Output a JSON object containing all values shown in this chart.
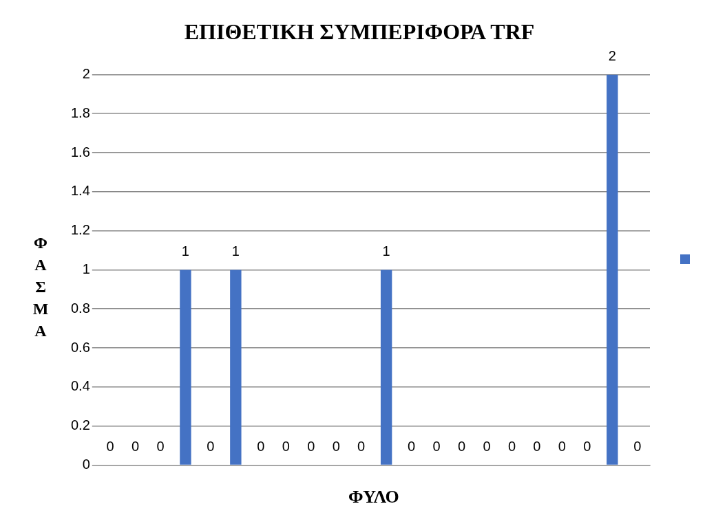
{
  "chart_data": {
    "type": "bar",
    "title": "ΕΠΙΘΕΤΙΚΗ ΣΥΜΠΕΡΙΦΟΡΑ TRF",
    "xlabel": "ΦΥΛΟ",
    "ylabel": "ΦΑΣΜΑ",
    "categories": [
      null,
      null,
      null,
      null,
      null,
      null,
      null,
      null,
      null,
      null,
      null,
      null,
      null,
      null,
      null,
      null,
      null,
      null,
      null,
      null,
      null,
      null
    ],
    "series": [
      {
        "color": "#4472c4",
        "values": [
          0,
          0,
          0,
          1,
          0,
          1,
          0,
          0,
          0,
          0,
          0,
          1,
          0,
          0,
          0,
          0,
          0,
          0,
          0,
          0,
          2,
          0
        ]
      }
    ],
    "ylim": [
      0,
      2
    ],
    "yticks": [
      0,
      0.2,
      0.4,
      0.6,
      0.8,
      1,
      1.2,
      1.4,
      1.6,
      1.8,
      2
    ],
    "grid": "y",
    "data_labels": true
  }
}
